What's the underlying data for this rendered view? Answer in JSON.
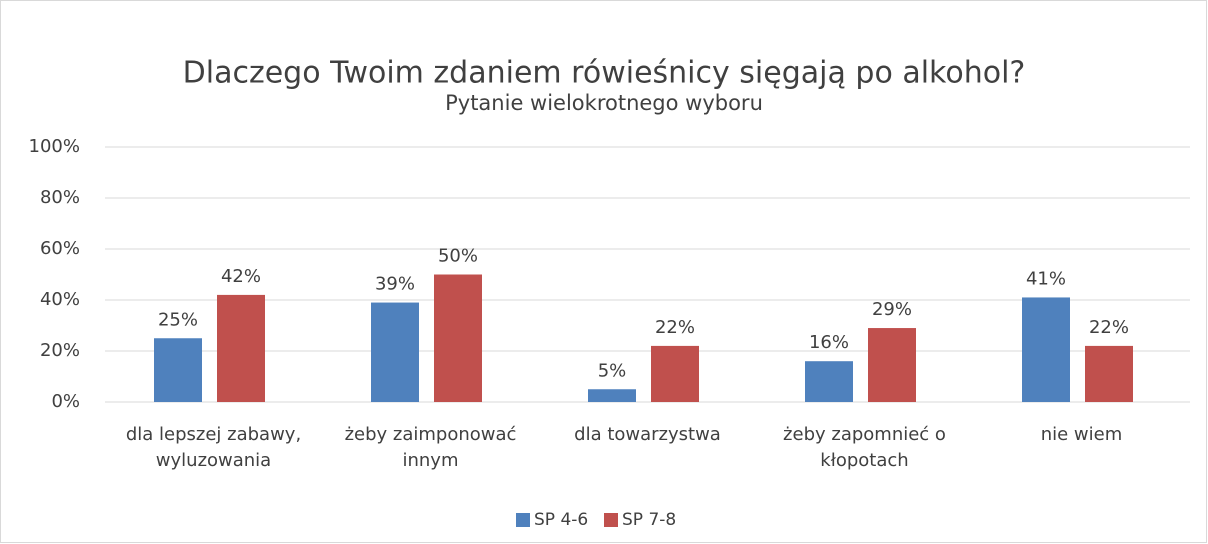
{
  "chart_data": {
    "type": "bar",
    "title": "Dlaczego Twoim zdaniem rówieśnicy sięgają po alkohol?",
    "subtitle": "Pytanie wielokrotnego wyboru",
    "categories": [
      "dla lepszej zabawy, wyluzowania",
      "żeby zaimponować innym",
      "dla towarzystwa",
      "żeby zapomnieć o kłopotach",
      "nie wiem"
    ],
    "series": [
      {
        "name": "SP 4-6",
        "color": "#4f81bd",
        "values": [
          25,
          39,
          5,
          16,
          41
        ],
        "value_labels": [
          "25%",
          "39%",
          "5%",
          "16%",
          "41%"
        ]
      },
      {
        "name": "SP 7-8",
        "color": "#c0504d",
        "values": [
          42,
          50,
          22,
          29,
          22
        ],
        "value_labels": [
          "42%",
          "50%",
          "22%",
          "29%",
          "22%"
        ]
      }
    ],
    "ylim": [
      0,
      100
    ],
    "yticks": [
      {
        "value": 0,
        "label": "0%"
      },
      {
        "value": 20,
        "label": "20%"
      },
      {
        "value": 40,
        "label": "40%"
      },
      {
        "value": 60,
        "label": "60%"
      },
      {
        "value": 80,
        "label": "80%"
      },
      {
        "value": 100,
        "label": "100%"
      }
    ],
    "grid": true,
    "legend": "bottom"
  }
}
